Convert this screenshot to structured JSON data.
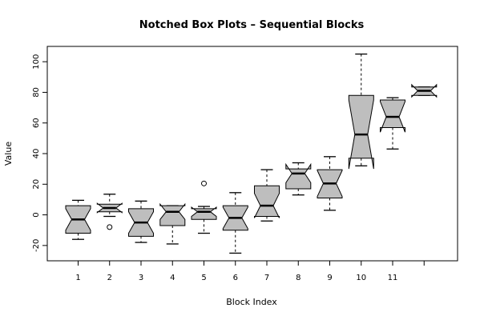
{
  "chart_data": {
    "type": "boxplot",
    "notched": true,
    "title": "Notched Box Plots – Sequential Blocks",
    "xlabel": "Block Index",
    "ylabel": "Value",
    "ylim": [
      -30,
      110
    ],
    "yticks": [
      -20,
      0,
      20,
      40,
      60,
      80,
      100
    ],
    "box_fill": "#bebebe",
    "boxes": [
      {
        "label": "1",
        "min": -16,
        "q1": -12,
        "median": -3,
        "q3": 6,
        "max": 9.5,
        "notch_lo": -10,
        "notch_hi": 4,
        "outliers": []
      },
      {
        "label": "2",
        "min": -1,
        "q1": 2,
        "median": 4.5,
        "q3": 7,
        "max": 13.5,
        "notch_lo": 1.5,
        "notch_hi": 7.5,
        "outliers": [
          -8
        ]
      },
      {
        "label": "3",
        "min": -18,
        "q1": -14,
        "median": -5,
        "q3": 4,
        "max": 9,
        "notch_lo": -12,
        "notch_hi": 2,
        "outliers": []
      },
      {
        "label": "4",
        "min": -19,
        "q1": -7,
        "median": 2,
        "q3": 6,
        "max": 6,
        "notch_lo": -3,
        "notch_hi": 7,
        "outliers": []
      },
      {
        "label": "5",
        "min": -12,
        "q1": -3,
        "median": 2,
        "q3": 4,
        "max": 5.5,
        "notch_lo": -1,
        "notch_hi": 5,
        "outliers": [
          20.5
        ]
      },
      {
        "label": "6",
        "min": -25,
        "q1": -10,
        "median": -2,
        "q3": 6,
        "max": 14.5,
        "notch_lo": -9,
        "notch_hi": 5,
        "outliers": []
      },
      {
        "label": "7",
        "min": -4,
        "q1": -1,
        "median": 6,
        "q3": 19,
        "max": 29.5,
        "notch_lo": -2,
        "notch_hi": 14,
        "outliers": []
      },
      {
        "label": "8",
        "min": 13,
        "q1": 17,
        "median": 27,
        "q3": 30,
        "max": 34,
        "notch_lo": 21,
        "notch_hi": 33,
        "outliers": []
      },
      {
        "label": "9",
        "min": 3,
        "q1": 11,
        "median": 20.5,
        "q3": 29.5,
        "max": 38,
        "notch_lo": 12,
        "notch_hi": 29,
        "outliers": []
      },
      {
        "label": "10",
        "min": 32,
        "q1": 37,
        "median": 52.5,
        "q3": 78,
        "max": 105,
        "notch_lo": 30,
        "notch_hi": 75,
        "outliers": []
      },
      {
        "label": "11",
        "min": 43,
        "q1": 57,
        "median": 64,
        "q3": 75,
        "max": 76.5,
        "notch_lo": 54,
        "notch_hi": 74,
        "outliers": []
      },
      {
        "label": "",
        "min": 78,
        "q1": 78,
        "median": 81,
        "q3": 83.5,
        "max": 83.5,
        "notch_lo": 77,
        "notch_hi": 85,
        "outliers": []
      }
    ]
  }
}
